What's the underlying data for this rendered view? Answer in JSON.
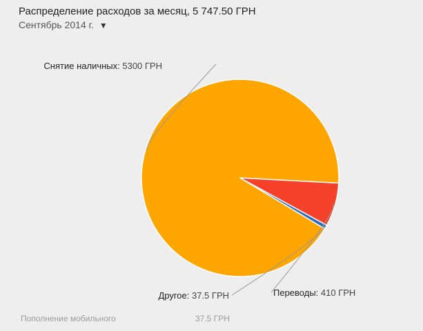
{
  "header": {
    "title": "Распределение расходов за месяц, 5 747.50 ГРН",
    "period": "Сентябрь 2014 г.",
    "period_caret": "▼"
  },
  "chart_data": {
    "type": "pie",
    "slices": [
      {
        "label": "Снятие наличных",
        "value": 5300,
        "value_text": "5300 ГРН",
        "color": "#ffa500"
      },
      {
        "label": "Переводы",
        "value": 410,
        "value_text": "410 ГРН",
        "color": "#f5412a"
      },
      {
        "label": "Другое",
        "value": 37.5,
        "value_text": "37.5 ГРН",
        "color": "#2a6ebb"
      }
    ],
    "slice_border_color": "#ffffff",
    "connector_color": "#999999"
  },
  "details": [
    {
      "name": "Пополнение мобильного",
      "amount": "37.5 ГРН"
    }
  ]
}
